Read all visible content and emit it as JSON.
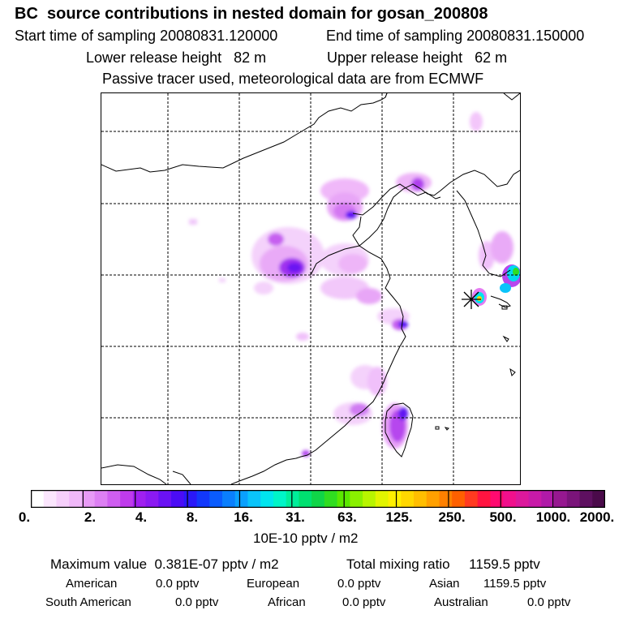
{
  "header": {
    "title": "BC  source contributions in nested domain for gosan_200808",
    "start_label": "Start time of sampling 20080831.120000",
    "end_label": "End time of sampling 20080831.150000",
    "lower_label": "Lower release height   82 m",
    "upper_label": "Upper release height   62 m",
    "tracer_note": "Passive tracer used, meteorological data are from ECMWF"
  },
  "colorbar": {
    "tick_labels": [
      "0.",
      "2.",
      "4.",
      "8.",
      "16.",
      "31.",
      "63.",
      "125.",
      "250.",
      "500.",
      "1000.",
      "2000."
    ],
    "unit_label": "10E-10 pptv / m2",
    "colors": [
      "#ffffff",
      "#fbe6fd",
      "#f6cffb",
      "#f0b8f9",
      "#e89af6",
      "#dd7ff3",
      "#cf5ef0",
      "#bf3bec",
      "#a020f0",
      "#8b1af2",
      "#6a12f4",
      "#4b0cf5",
      "#2a18f8",
      "#1238fb",
      "#0a5cfd",
      "#0a7ffd",
      "#0aa0fd",
      "#0ac4fa",
      "#00e5ee",
      "#00f5c8",
      "#00ee9a",
      "#00e070",
      "#10d548",
      "#30dd20",
      "#5ae800",
      "#8af000",
      "#b8f500",
      "#e2f500",
      "#fff000",
      "#ffd700",
      "#ffbe00",
      "#ffa000",
      "#ff8000",
      "#ff6000",
      "#ff3a20",
      "#ff1440",
      "#ff0a70",
      "#f0108c",
      "#dc189c",
      "#c81aa8",
      "#b01aa8",
      "#961890",
      "#7a147a",
      "#5e1060",
      "#4a0a4a"
    ]
  },
  "summary": {
    "max_label": "Maximum value  0.381E-07 pptv / m2",
    "total_label": "Total mixing ratio     1159.5 pptv",
    "american_label": "American",
    "american_value": "0.0 pptv",
    "european_label": "European",
    "european_value": "0.0 pptv",
    "asian_label": "Asian",
    "asian_value": "1159.5 pptv",
    "south_american_label": "South American",
    "south_american_value": "0.0 pptv",
    "african_label": "African",
    "african_value": "0.0 pptv",
    "australian_label": "Australian",
    "australian_value": "0.0 pptv"
  }
}
